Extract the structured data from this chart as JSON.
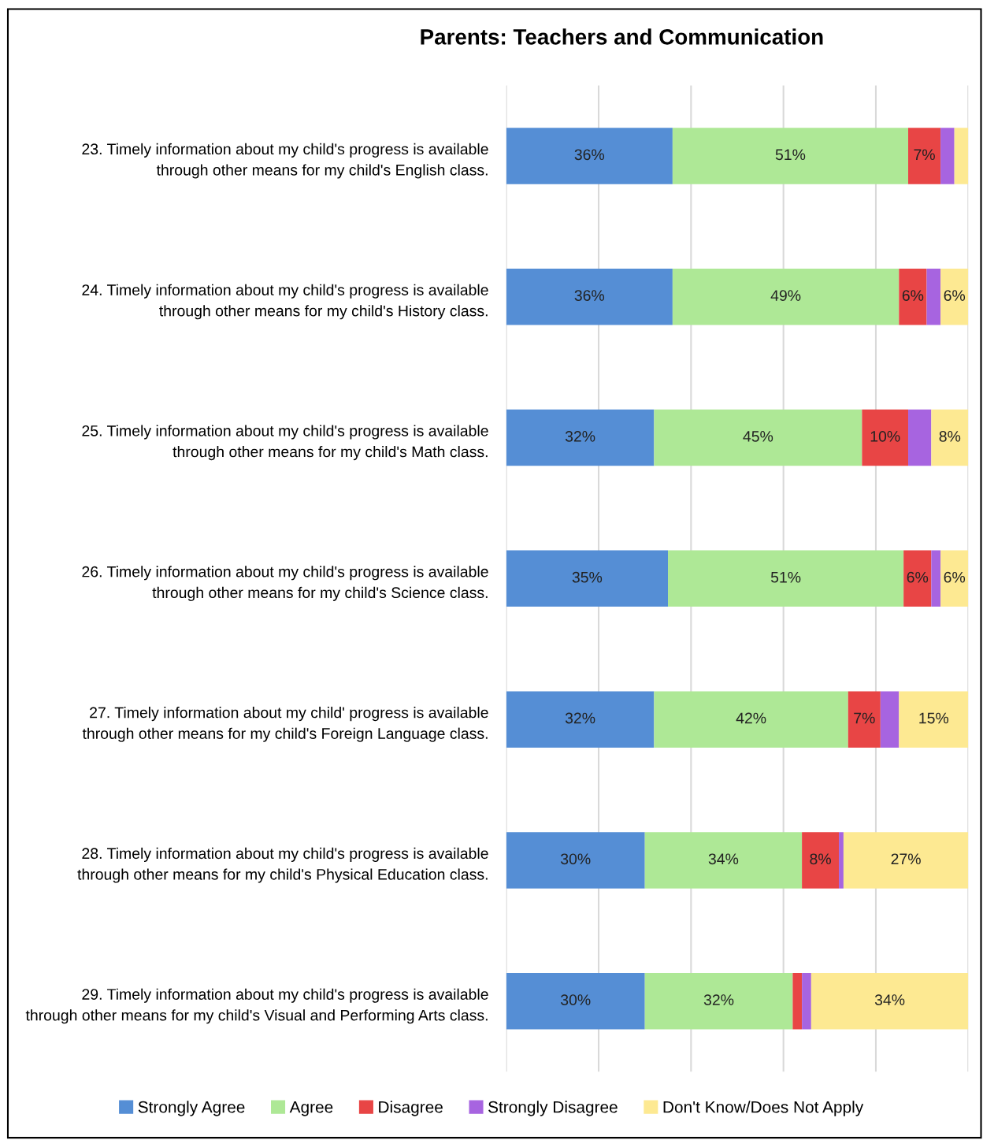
{
  "chart_data": {
    "type": "bar",
    "title": "Parents: Teachers and Communication",
    "orientation": "horizontal",
    "stacked": true,
    "categories": [
      "23. Timely information about my child's progress is available\nthrough other means for my child's English class.",
      "24. Timely information about my child's progress is available\nthrough other means for my child's History class.",
      "25. Timely information about my child's progress is available\nthrough other means for my child's Math class.",
      "26. Timely information about my child's progress is available\nthrough other means for my child's Science class.",
      "27. Timely information about my child' progress is available\nthrough other means for my child's Foreign Language class.",
      "28. Timely information about my child's progress is available\nthrough other means for my child's Physical Education class.",
      "29. Timely information about my child's progress is available\nthrough other means for my child's Visual and Performing Arts class."
    ],
    "series": [
      {
        "name": "Strongly Agree",
        "color": "#558ed5",
        "values": [
          36,
          36,
          32,
          35,
          32,
          30,
          30
        ],
        "value_labels": [
          "36%",
          "36%",
          "32%",
          "35%",
          "32%",
          "30%",
          "30%"
        ]
      },
      {
        "name": "Agree",
        "color": "#aee896",
        "values": [
          51,
          49,
          45,
          51,
          42,
          34,
          32
        ],
        "value_labels": [
          "51%",
          "49%",
          "45%",
          "51%",
          "42%",
          "34%",
          "32%"
        ]
      },
      {
        "name": "Disagree",
        "color": "#e84545",
        "values": [
          7,
          6,
          10,
          6,
          7,
          8,
          2
        ],
        "value_labels": [
          "7%",
          "6%",
          "10%",
          "6%",
          "7%",
          "8%",
          null
        ]
      },
      {
        "name": "Strongly Disagree",
        "color": "#a764e0",
        "values": [
          3,
          3,
          5,
          2,
          4,
          1,
          2
        ],
        "value_labels": [
          null,
          null,
          null,
          null,
          null,
          null,
          null
        ]
      },
      {
        "name": "Don't Know/Does Not Apply",
        "color": "#fde992",
        "values": [
          3,
          6,
          8,
          6,
          15,
          27,
          34
        ],
        "value_labels": [
          null,
          "6%",
          "8%",
          "6%",
          "15%",
          "27%",
          "34%"
        ]
      }
    ],
    "xlim": [
      0,
      100
    ],
    "xticks": [
      {
        "value": 0,
        "label": null
      },
      {
        "value": 20,
        "label": null
      },
      {
        "value": 40,
        "label": null
      },
      {
        "value": 60,
        "label": null
      },
      {
        "value": 80,
        "label": null
      },
      {
        "value": 100,
        "label": null
      }
    ],
    "tick_labels": "y",
    "grid": "x",
    "legend": "bottom"
  }
}
